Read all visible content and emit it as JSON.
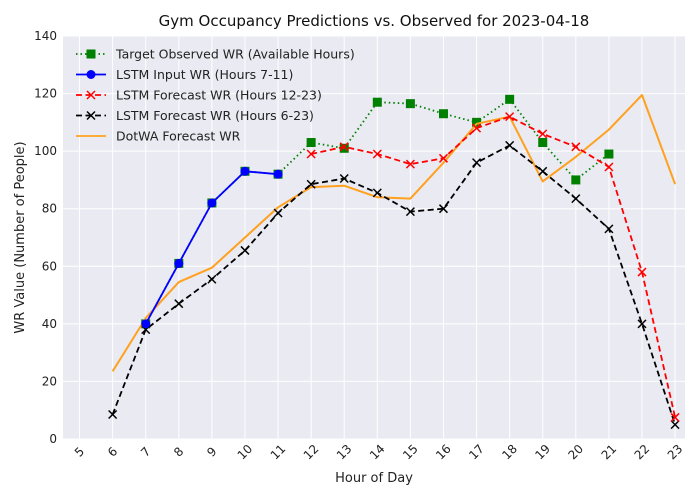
{
  "chart_data": {
    "type": "line",
    "title": "Gym Occupancy Predictions vs. Observed for 2023-04-18",
    "xlabel": "Hour of Day",
    "ylabel": "WR Value (Number of People)",
    "xlim": [
      5,
      23
    ],
    "ylim": [
      0,
      140
    ],
    "x_ticks": [
      5,
      6,
      7,
      8,
      9,
      10,
      11,
      12,
      13,
      14,
      15,
      16,
      17,
      18,
      19,
      20,
      21,
      22,
      23
    ],
    "y_ticks": [
      0,
      20,
      40,
      60,
      80,
      100,
      120,
      140
    ],
    "grid": true,
    "legend_position": "top-left",
    "series": [
      {
        "name": "Target Observed WR (Available Hours)",
        "color": "#008000",
        "style": "dotted",
        "marker": "square",
        "x": [
          7,
          8,
          9,
          10,
          11,
          12,
          13,
          14,
          15,
          16,
          17,
          18,
          19,
          20,
          21
        ],
        "values": [
          40,
          61,
          82,
          93,
          92,
          103,
          101,
          117,
          116.5,
          113,
          110,
          118,
          103,
          90,
          99
        ]
      },
      {
        "name": "LSTM Input WR (Hours 7-11)",
        "color": "#0000ff",
        "style": "solid",
        "marker": "circle",
        "x": [
          7,
          8,
          9,
          10,
          11
        ],
        "values": [
          40,
          61,
          82,
          93,
          92
        ]
      },
      {
        "name": "LSTM Forecast WR (Hours 12-23)",
        "color": "#ff0000",
        "style": "dashed",
        "marker": "x",
        "x": [
          12,
          13,
          14,
          15,
          16,
          17,
          18,
          19,
          20,
          21,
          22,
          23
        ],
        "values": [
          99,
          101.5,
          99,
          95.5,
          97.5,
          108,
          112,
          106,
          101.5,
          94.5,
          58,
          7.5
        ]
      },
      {
        "name": "LSTM Forecast WR (Hours 6-23)",
        "color": "#000000",
        "style": "dashed",
        "marker": "x",
        "x": [
          6,
          7,
          8,
          9,
          10,
          11,
          12,
          13,
          14,
          15,
          16,
          17,
          18,
          19,
          20,
          21,
          22,
          23
        ],
        "values": [
          8.5,
          38,
          47,
          55.5,
          65.5,
          78.5,
          88.5,
          90.5,
          85.5,
          79,
          80,
          96,
          102,
          93,
          83.5,
          73,
          40,
          5
        ]
      },
      {
        "name": "DotWA Forecast WR",
        "color": "#ffa01e",
        "style": "solid",
        "marker": "none",
        "x": [
          6,
          7,
          8,
          9,
          10,
          11,
          12,
          13,
          14,
          15,
          16,
          17,
          18,
          19,
          20,
          21,
          22,
          23
        ],
        "values": [
          23.5,
          42,
          54.5,
          59.5,
          70,
          80.5,
          87.5,
          88,
          84,
          83.5,
          96,
          109.5,
          112,
          89.5,
          98,
          107.5,
          119.5,
          88.5
        ]
      }
    ]
  }
}
